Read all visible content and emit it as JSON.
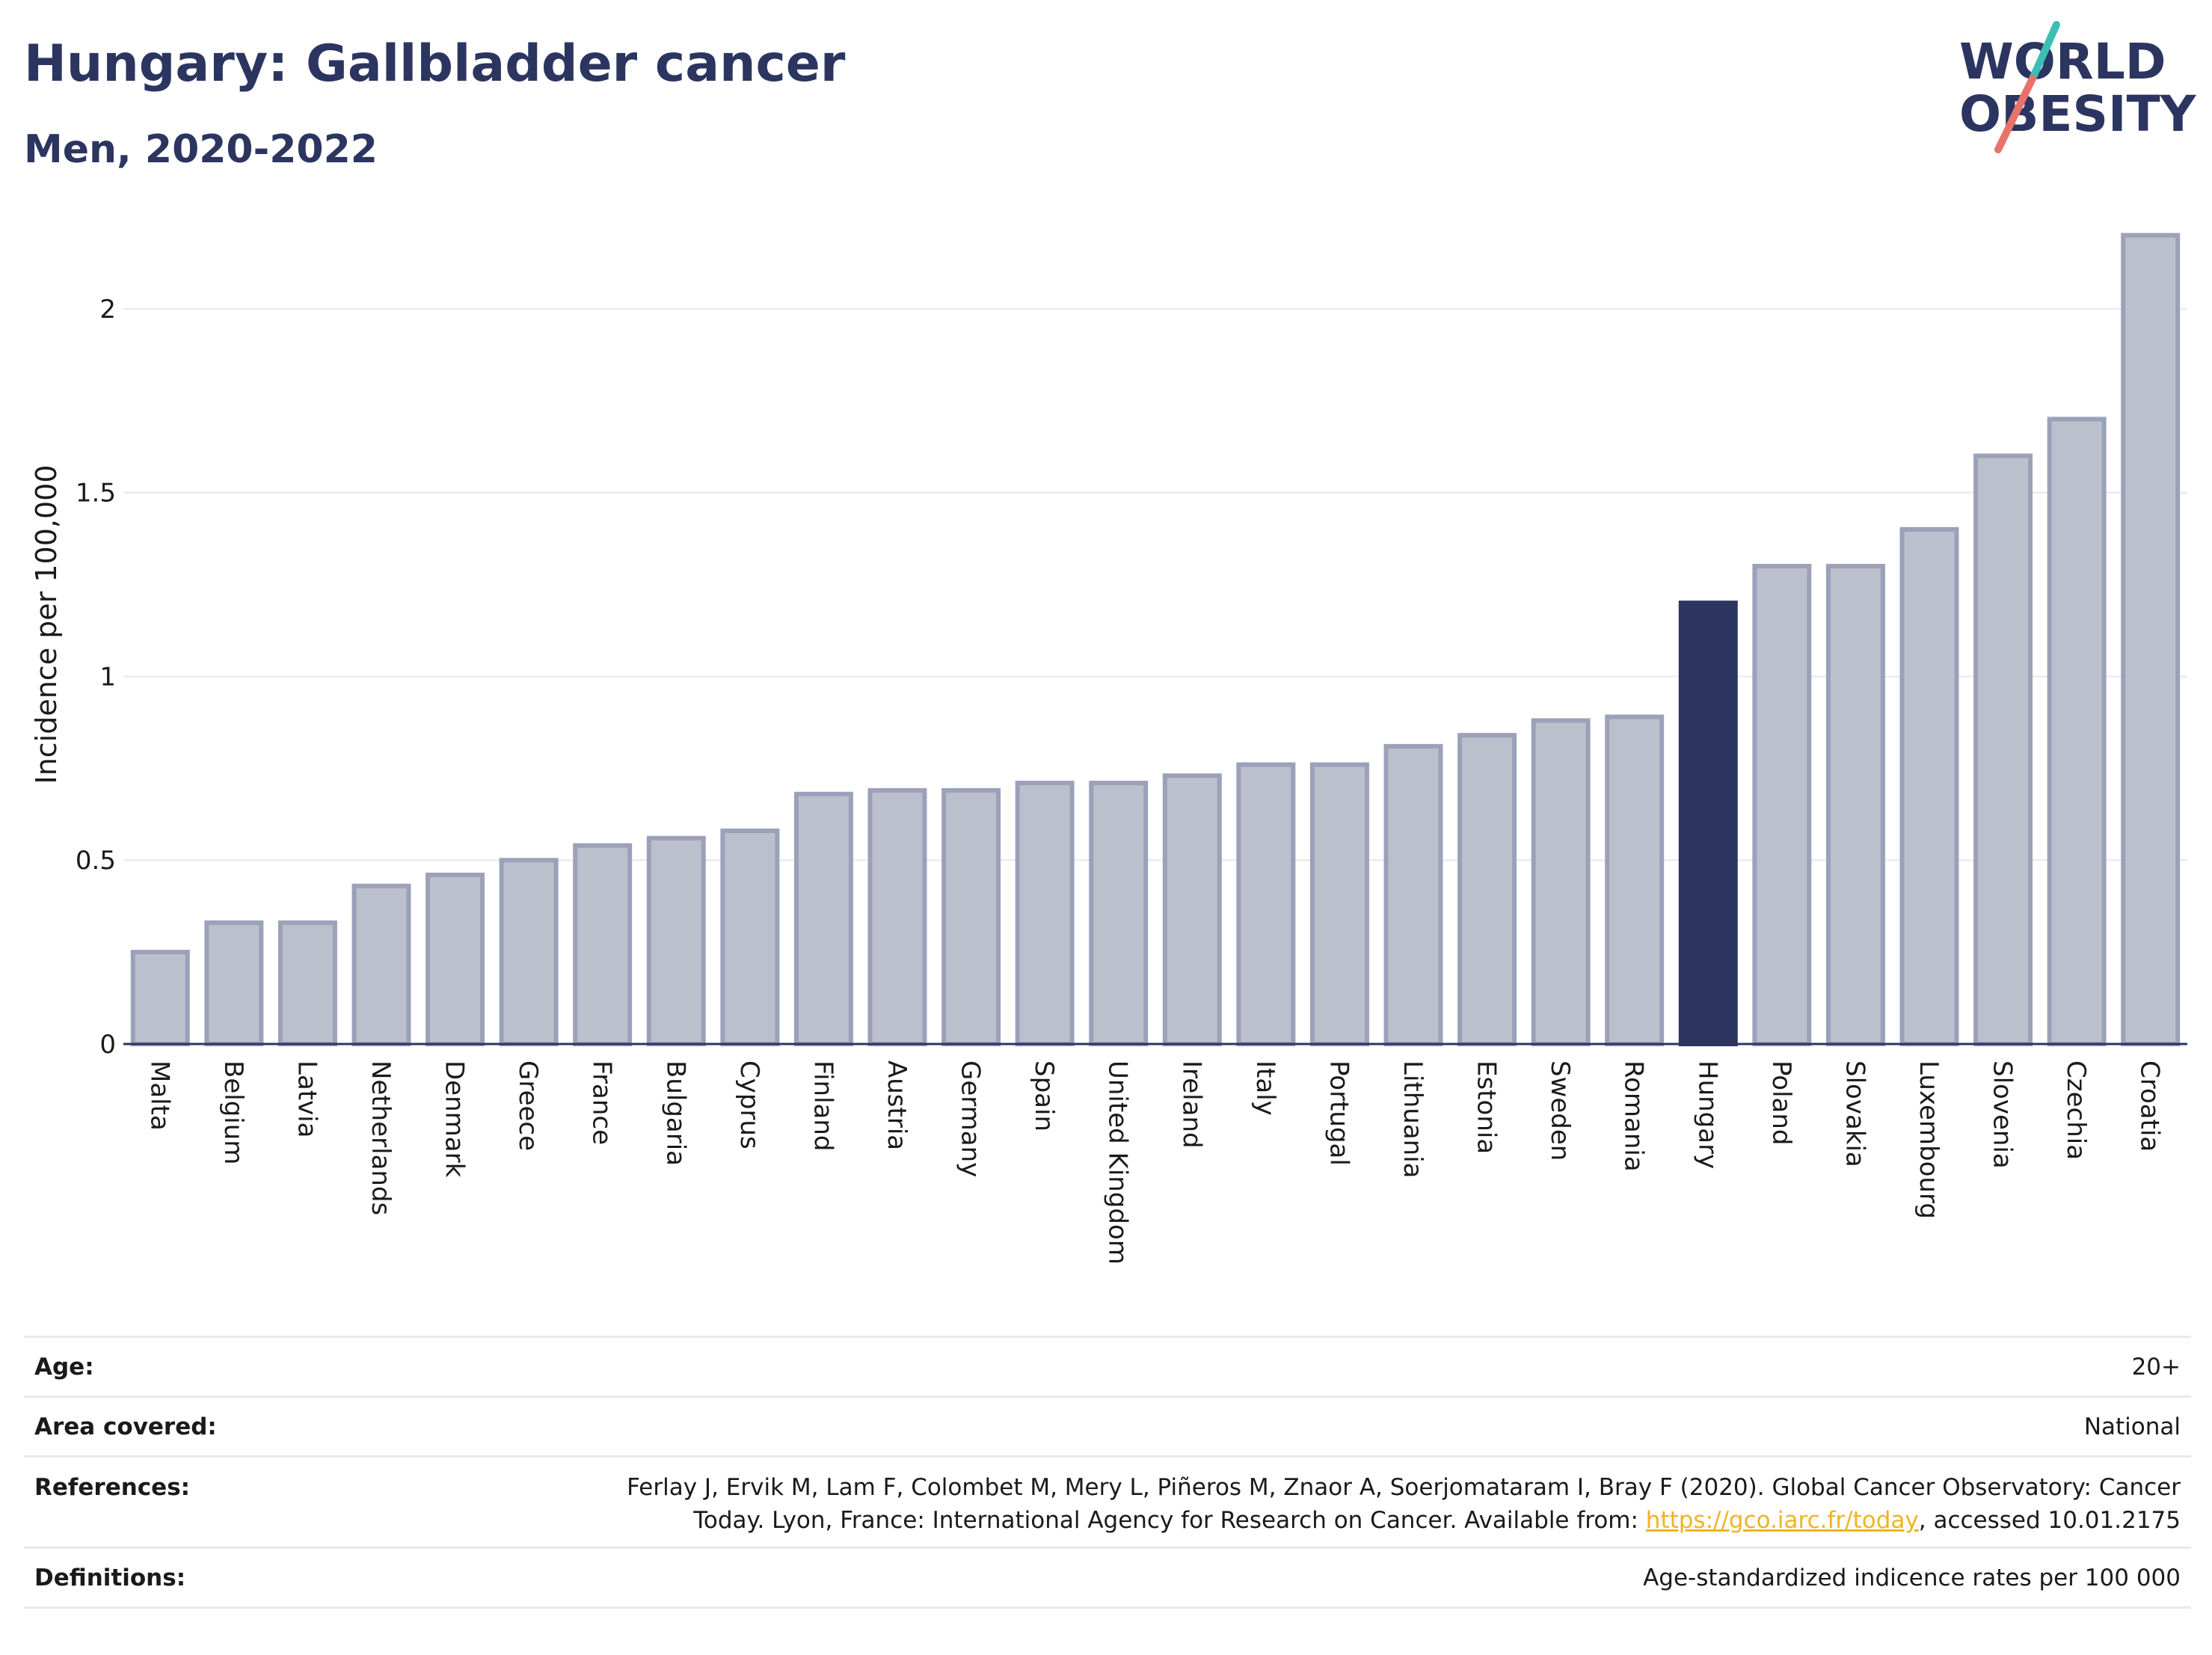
{
  "title": "Hungary: Gallbladder cancer",
  "subtitle": "Men, 2020-2022",
  "logo": {
    "line1": "WORLD",
    "line2": "OBESITY",
    "accent_colors": [
      "#3bbfb5",
      "#e8736a"
    ]
  },
  "colors": {
    "bar": "#bcc0cd",
    "bar_edge": "#9aa1b8",
    "highlight": "#2b3560",
    "grid": "#e6e8ee"
  },
  "chart_data": {
    "type": "bar",
    "title": "Hungary: Gallbladder cancer",
    "subtitle": "Men, 2020-2022",
    "xlabel": "",
    "ylabel": "Incidence per 100,000",
    "ylim": [
      0,
      2.25
    ],
    "yticks": [
      0,
      0.5,
      1,
      1.5,
      2
    ],
    "ytick_labels": [
      "0",
      "0.5",
      "1",
      "1.5",
      "2"
    ],
    "highlight": "Hungary",
    "grid": true,
    "categories": [
      "Malta",
      "Belgium",
      "Latvia",
      "Netherlands",
      "Denmark",
      "Greece",
      "France",
      "Bulgaria",
      "Cyprus",
      "Finland",
      "Austria",
      "Germany",
      "Spain",
      "United Kingdom",
      "Ireland",
      "Italy",
      "Portugal",
      "Lithuania",
      "Estonia",
      "Sweden",
      "Romania",
      "Hungary",
      "Poland",
      "Slovakia",
      "Luxembourg",
      "Slovenia",
      "Czechia",
      "Croatia"
    ],
    "values": [
      0.25,
      0.33,
      0.33,
      0.43,
      0.46,
      0.5,
      0.54,
      0.56,
      0.58,
      0.68,
      0.69,
      0.69,
      0.71,
      0.71,
      0.73,
      0.76,
      0.76,
      0.81,
      0.84,
      0.88,
      0.89,
      1.2,
      1.3,
      1.3,
      1.4,
      1.6,
      1.7,
      2.2
    ]
  },
  "info": {
    "age_label": "Age:",
    "age_value": "20+",
    "area_label": "Area covered:",
    "area_value": "National",
    "references_label": "References:",
    "references_line1": "Ferlay J, Ervik M, Lam F, Colombet M, Mery L, Piñeros M, Znaor A, Soerjomataram I, Bray F (2020). Global Cancer Observatory: Cancer",
    "references_line2_pre": "Today. Lyon, France: International Agency for Research on Cancer. Available from: ",
    "references_link": "https://gco.iarc.fr/today",
    "references_line2_post": ", accessed 10.01.2175",
    "definitions_label": "Definitions:",
    "definitions_value": "Age-standardized indicence rates per 100 000"
  }
}
